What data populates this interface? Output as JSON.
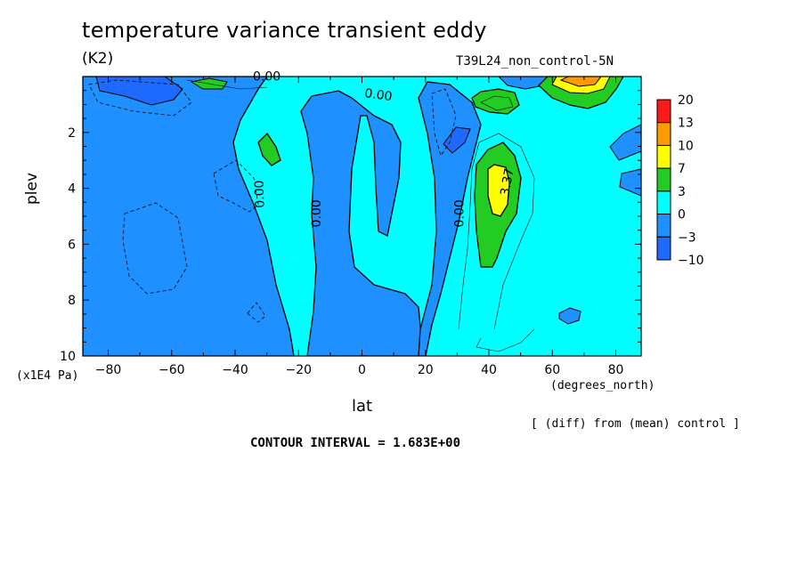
{
  "chart_data": {
    "type": "heatmap",
    "title": "temperature variance transient eddy",
    "units": "(K2)",
    "run_label": "T39L24_non_control-5N",
    "xlabel": "lat",
    "xunit": "(degrees_north)",
    "ylabel": "plev",
    "yunit": "(x1E4 Pa)",
    "xlim": [
      -88,
      88
    ],
    "ylim": [
      10,
      0
    ],
    "xticks": [
      -80,
      -60,
      -40,
      -20,
      0,
      20,
      40,
      60,
      80
    ],
    "yticks": [
      2,
      4,
      6,
      8,
      10
    ],
    "note": "[ (diff) from (mean) control ]",
    "contour_interval_text": "CONTOUR INTERVAL = 1.683E+00",
    "contour_labels": [
      "0.00",
      "0.00",
      "0.00",
      "0.00",
      "0.00",
      "3.37"
    ],
    "colorbar": {
      "levels": [
        "20",
        "13",
        "10",
        "7",
        "3",
        "0",
        "−3",
        "−10"
      ],
      "colors": [
        "#ff1a1a",
        "#ff9a00",
        "#ffff00",
        "#22cc22",
        "#00ffff",
        "#1e90ff",
        "#1e6aff"
      ]
    },
    "regions": [
      {
        "level": "positive_background",
        "color": "#00ffff",
        "lat": [
          -88,
          88
        ],
        "plev": [
          0,
          10
        ]
      },
      {
        "level": "negative",
        "color": "#1e90ff",
        "lat": [
          -88,
          -25
        ],
        "plev": [
          0.2,
          10
        ]
      },
      {
        "level": "negative",
        "color": "#1e90ff",
        "lat": [
          -15,
          32
        ],
        "plev": [
          0.5,
          10
        ]
      },
      {
        "level": "min",
        "color": "#1e6aff",
        "lat": [
          -75,
          -60
        ],
        "plev": [
          0.1,
          0.6
        ]
      },
      {
        "level": "positive",
        "color": "#22cc22",
        "lat": [
          -32,
          -26
        ],
        "plev": [
          2.2,
          3.1
        ]
      },
      {
        "level": "positive",
        "color": "#22cc22",
        "lat": [
          36,
          50
        ],
        "plev": [
          2.4,
          6.8
        ]
      },
      {
        "level": "peak",
        "color": "#ffff00",
        "lat": [
          38,
          45
        ],
        "plev": [
          3.2,
          5.0
        ]
      },
      {
        "level": "peak",
        "color": "#ff9a00",
        "lat": [
          60,
          75
        ],
        "plev": [
          0,
          0.3
        ]
      }
    ]
  }
}
